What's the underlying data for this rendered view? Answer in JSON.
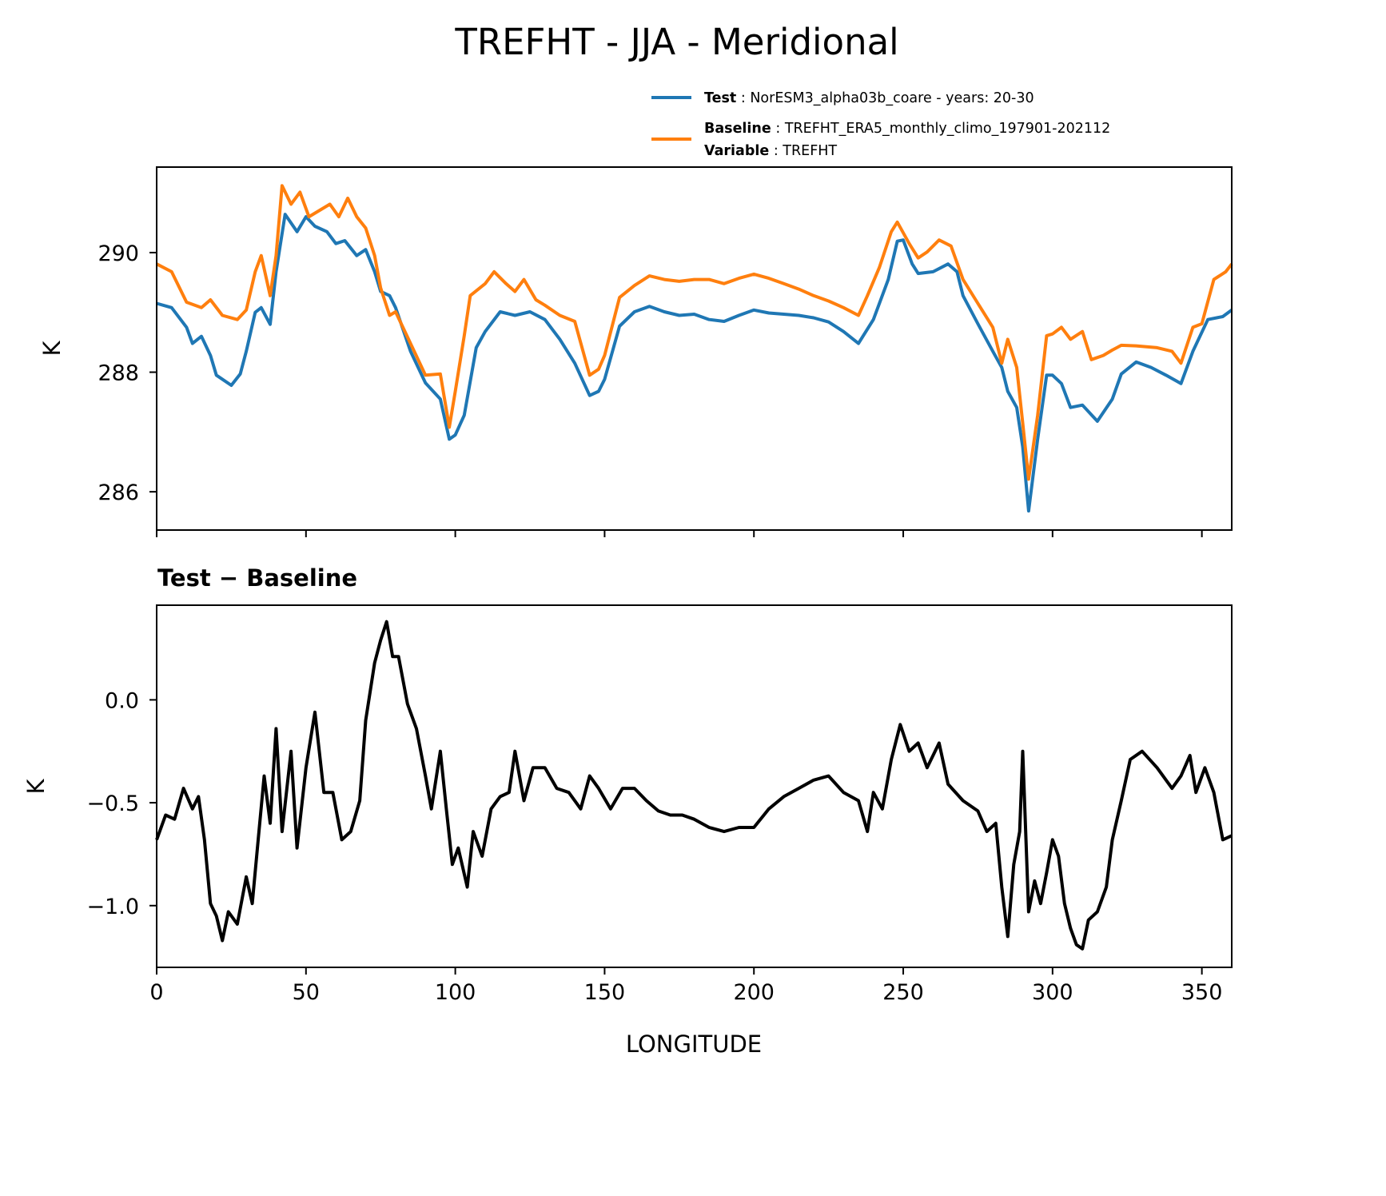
{
  "chart_data": [
    {
      "type": "line",
      "title": "TREFHT - JJA - Meridional",
      "xlabel": "",
      "ylabel": "K",
      "xlim": [
        0,
        360
      ],
      "ylim": [
        285.36,
        291.43
      ],
      "yticks": [
        286,
        288,
        290
      ],
      "ytick_labels": [
        "286",
        "288",
        "290"
      ],
      "xticks": [
        0,
        50,
        100,
        150,
        200,
        250,
        300,
        350
      ],
      "grid": false,
      "legend": {
        "placement": "top-right-outside",
        "entries": [
          {
            "key": "Test",
            "sep": ":",
            "text": "NorESM3_alpha03b_coare - years: 20-30",
            "color": "#1f77b4"
          },
          {
            "key": "Baseline",
            "sep": ":",
            "text": "TREFHT_ERA5_monthly_climo_197901-202112",
            "color": "#ff7f0e",
            "extra_key": "Variable",
            "extra_text": "TREFHT"
          }
        ]
      },
      "series": [
        {
          "name": "Test",
          "color": "#1f77b4",
          "x": [
            0,
            5,
            10,
            12,
            15,
            18,
            20,
            25,
            28,
            30,
            33,
            35,
            38,
            40,
            43,
            47,
            50,
            53,
            57,
            60,
            63,
            67,
            70,
            73,
            75,
            78,
            80,
            85,
            90,
            95,
            98,
            100,
            103,
            107,
            110,
            115,
            120,
            125,
            130,
            135,
            140,
            145,
            148,
            150,
            155,
            160,
            165,
            170,
            175,
            180,
            185,
            190,
            195,
            200,
            205,
            210,
            215,
            220,
            225,
            230,
            235,
            240,
            245,
            248,
            250,
            253,
            255,
            260,
            265,
            268,
            270,
            275,
            280,
            283,
            285,
            288,
            290,
            292,
            295,
            298,
            300,
            303,
            306,
            310,
            315,
            320,
            323,
            328,
            333,
            338,
            343,
            347,
            352,
            357,
            360
          ],
          "y": [
            289.15,
            289.08,
            288.75,
            288.48,
            288.6,
            288.28,
            287.95,
            287.78,
            287.97,
            288.35,
            289.0,
            289.08,
            288.8,
            289.68,
            290.64,
            290.35,
            290.6,
            290.44,
            290.35,
            290.15,
            290.2,
            289.95,
            290.05,
            289.68,
            289.35,
            289.28,
            289.08,
            288.35,
            287.82,
            287.55,
            286.88,
            286.95,
            287.28,
            288.41,
            288.68,
            289.01,
            288.95,
            289.01,
            288.88,
            288.55,
            288.15,
            287.61,
            287.68,
            287.88,
            288.77,
            289.01,
            289.1,
            289.01,
            288.95,
            288.97,
            288.88,
            288.85,
            288.95,
            289.04,
            288.99,
            288.97,
            288.95,
            288.91,
            288.84,
            288.68,
            288.48,
            288.88,
            289.55,
            290.19,
            290.21,
            289.81,
            289.65,
            289.68,
            289.81,
            289.68,
            289.28,
            288.81,
            288.35,
            288.08,
            287.68,
            287.41,
            286.75,
            285.68,
            286.88,
            287.95,
            287.95,
            287.81,
            287.41,
            287.45,
            287.18,
            287.55,
            287.97,
            288.17,
            288.08,
            287.95,
            287.81,
            288.35,
            288.88,
            288.93,
            289.04
          ]
        },
        {
          "name": "Baseline",
          "color": "#ff7f0e",
          "x": [
            0,
            5,
            10,
            15,
            18,
            22,
            27,
            30,
            33,
            35,
            38,
            40,
            42,
            45,
            48,
            51,
            55,
            58,
            61,
            64,
            67,
            70,
            73,
            75,
            78,
            80,
            85,
            90,
            95,
            98,
            100,
            103,
            105,
            110,
            113,
            117,
            120,
            123,
            127,
            130,
            135,
            140,
            145,
            148,
            150,
            155,
            160,
            165,
            170,
            175,
            180,
            185,
            190,
            195,
            200,
            205,
            210,
            215,
            220,
            225,
            230,
            235,
            238,
            242,
            246,
            248,
            252,
            255,
            258,
            262,
            266,
            270,
            275,
            280,
            283,
            285,
            288,
            290,
            292,
            295,
            298,
            300,
            303,
            306,
            310,
            313,
            317,
            320,
            323,
            328,
            335,
            340,
            343,
            347,
            350,
            354,
            358,
            360
          ],
          "y": [
            289.81,
            289.68,
            289.17,
            289.08,
            289.21,
            288.95,
            288.88,
            289.04,
            289.68,
            289.95,
            289.28,
            289.95,
            291.12,
            290.81,
            291.01,
            290.6,
            290.72,
            290.81,
            290.6,
            290.91,
            290.6,
            290.41,
            289.95,
            289.41,
            288.95,
            289.01,
            288.48,
            287.95,
            287.97,
            287.08,
            287.68,
            288.61,
            289.28,
            289.48,
            289.68,
            289.48,
            289.35,
            289.55,
            289.21,
            289.12,
            288.95,
            288.85,
            287.95,
            288.05,
            288.28,
            289.25,
            289.45,
            289.61,
            289.55,
            289.52,
            289.55,
            289.55,
            289.48,
            289.57,
            289.64,
            289.57,
            289.48,
            289.39,
            289.28,
            289.19,
            289.08,
            288.95,
            289.28,
            289.75,
            290.35,
            290.51,
            290.15,
            289.91,
            290.01,
            290.21,
            290.11,
            289.55,
            289.15,
            288.75,
            288.15,
            288.55,
            288.08,
            287.15,
            286.21,
            287.28,
            288.61,
            288.64,
            288.75,
            288.55,
            288.68,
            288.21,
            288.28,
            288.37,
            288.45,
            288.44,
            288.41,
            288.35,
            288.15,
            288.75,
            288.81,
            289.55,
            289.68,
            289.81
          ]
        }
      ]
    },
    {
      "type": "line",
      "title": "Test − Baseline",
      "xlabel": "LONGITUDE",
      "ylabel": "K",
      "xlim": [
        0,
        360
      ],
      "ylim": [
        -1.3,
        0.46
      ],
      "yticks": [
        -1.0,
        -0.5,
        0.0
      ],
      "ytick_labels": [
        "−1.0",
        "−0.5",
        "0.0"
      ],
      "xticks": [
        0,
        50,
        100,
        150,
        200,
        250,
        300,
        350
      ],
      "xtick_labels": [
        "0",
        "50",
        "100",
        "150",
        "200",
        "250",
        "300",
        "350"
      ],
      "grid": false,
      "series": [
        {
          "name": "Test - Baseline",
          "color": "#000000",
          "x": [
            0,
            3,
            6,
            9,
            12,
            14,
            16,
            18,
            20,
            22,
            24,
            27,
            30,
            32,
            34,
            36,
            38,
            40,
            42,
            45,
            47,
            50,
            53,
            56,
            59,
            62,
            65,
            68,
            70,
            73,
            75,
            77,
            79,
            81,
            84,
            87,
            90,
            92,
            95,
            97,
            99,
            101,
            104,
            106,
            109,
            112,
            115,
            118,
            120,
            123,
            126,
            130,
            134,
            138,
            142,
            145,
            148,
            152,
            156,
            160,
            164,
            168,
            172,
            176,
            180,
            185,
            190,
            195,
            200,
            205,
            210,
            215,
            220,
            225,
            230,
            235,
            238,
            240,
            243,
            246,
            249,
            252,
            255,
            258,
            262,
            265,
            270,
            275,
            278,
            281,
            283,
            285,
            287,
            289,
            290,
            292,
            294,
            296,
            298,
            300,
            302,
            304,
            306,
            308,
            310,
            312,
            315,
            318,
            320,
            323,
            326,
            330,
            335,
            340,
            343,
            346,
            348,
            351,
            354,
            357,
            360
          ],
          "y": [
            -0.68,
            -0.56,
            -0.58,
            -0.43,
            -0.53,
            -0.47,
            -0.68,
            -0.99,
            -1.05,
            -1.17,
            -1.03,
            -1.09,
            -0.86,
            -0.99,
            -0.68,
            -0.37,
            -0.6,
            -0.14,
            -0.64,
            -0.25,
            -0.72,
            -0.33,
            -0.06,
            -0.45,
            -0.45,
            -0.68,
            -0.64,
            -0.49,
            -0.1,
            0.18,
            0.29,
            0.38,
            0.21,
            0.21,
            -0.02,
            -0.14,
            -0.37,
            -0.53,
            -0.25,
            -0.53,
            -0.8,
            -0.72,
            -0.91,
            -0.64,
            -0.76,
            -0.53,
            -0.47,
            -0.45,
            -0.25,
            -0.49,
            -0.33,
            -0.33,
            -0.43,
            -0.45,
            -0.53,
            -0.37,
            -0.43,
            -0.53,
            -0.43,
            -0.43,
            -0.49,
            -0.54,
            -0.56,
            -0.56,
            -0.58,
            -0.62,
            -0.64,
            -0.62,
            -0.62,
            -0.53,
            -0.47,
            -0.43,
            -0.39,
            -0.37,
            -0.45,
            -0.49,
            -0.64,
            -0.45,
            -0.53,
            -0.29,
            -0.12,
            -0.25,
            -0.21,
            -0.33,
            -0.21,
            -0.41,
            -0.49,
            -0.54,
            -0.64,
            -0.6,
            -0.91,
            -1.15,
            -0.8,
            -0.64,
            -0.25,
            -1.03,
            -0.88,
            -0.99,
            -0.84,
            -0.68,
            -0.76,
            -0.99,
            -1.11,
            -1.19,
            -1.21,
            -1.07,
            -1.03,
            -0.91,
            -0.68,
            -0.49,
            -0.29,
            -0.25,
            -0.33,
            -0.43,
            -0.37,
            -0.27,
            -0.45,
            -0.33,
            -0.45,
            -0.68,
            -0.66
          ]
        }
      ]
    }
  ]
}
